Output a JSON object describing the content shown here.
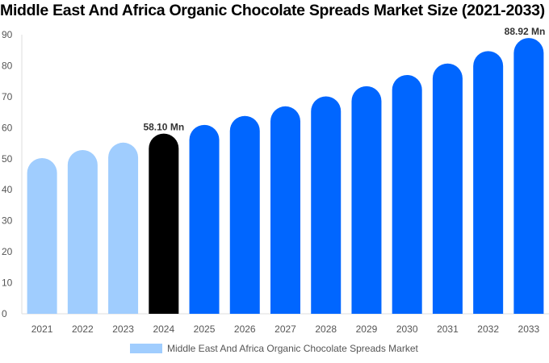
{
  "chart_data": {
    "type": "bar",
    "title": "Middle East And Africa Organic Chocolate Spreads Market Size (2021-2033)",
    "categories": [
      "2021",
      "2022",
      "2023",
      "2024",
      "2025",
      "2026",
      "2027",
      "2028",
      "2029",
      "2030",
      "2031",
      "2032",
      "2033"
    ],
    "series": [
      {
        "name": "Middle East And Africa Organic Chocolate Spreads Market",
        "values": [
          50.2,
          52.8,
          55.2,
          58.1,
          60.9,
          63.8,
          66.9,
          70.1,
          73.4,
          77.0,
          80.7,
          84.7,
          88.92
        ]
      }
    ],
    "data_labels": {
      "3": "58.10 Mn",
      "12": "88.92 Mn"
    },
    "ylim": [
      0,
      90
    ],
    "yticks": [
      0,
      10,
      20,
      30,
      40,
      50,
      60,
      70,
      80,
      90
    ],
    "grid": false,
    "legend_position": "bottom",
    "colors": {
      "historical": "#a0cdfe",
      "base_year": "#000000",
      "forecast": "#0066ff"
    }
  }
}
